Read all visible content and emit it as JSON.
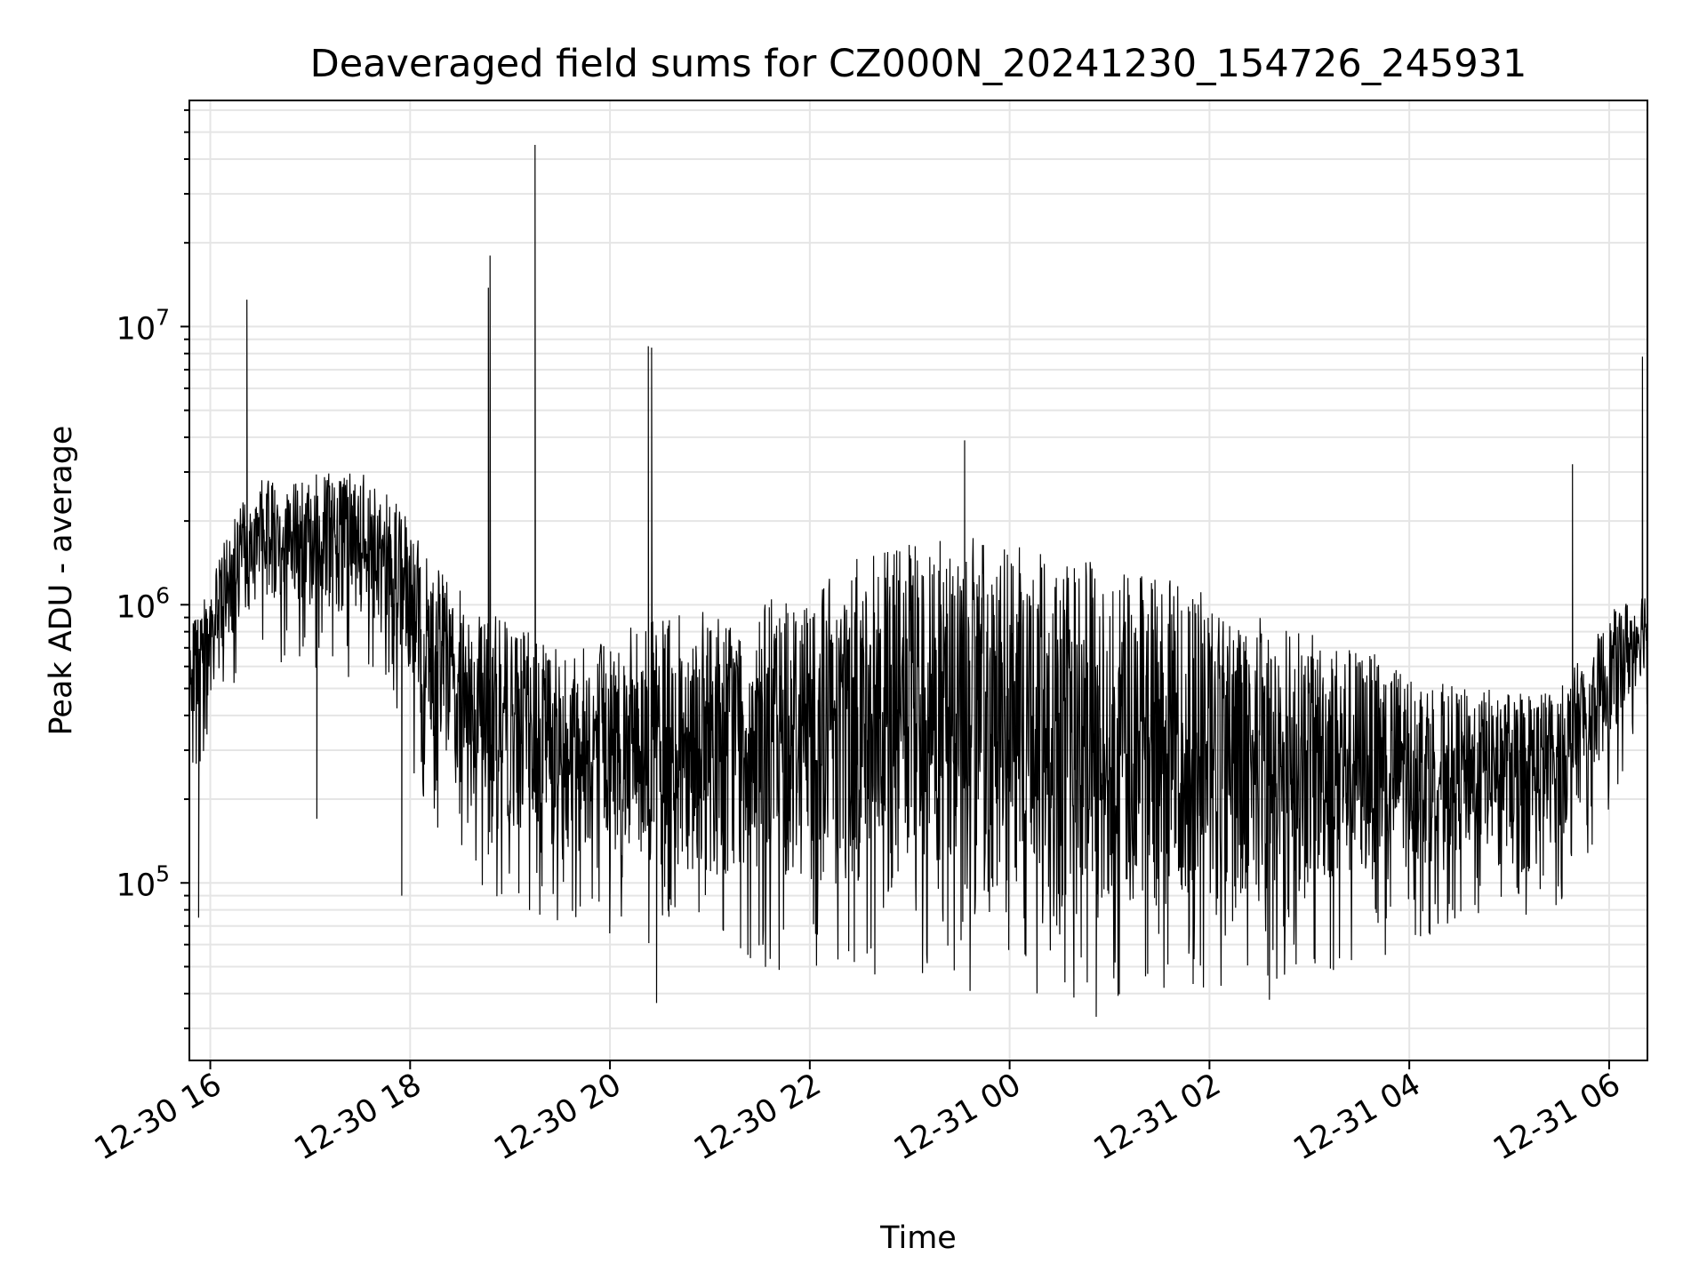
{
  "chart_data": {
    "type": "line",
    "title": "Deaveraged field sums for CZ000N_20241230_154726_245931",
    "xlabel": "Time",
    "ylabel": "Peak ADU - average",
    "yscale": "log",
    "ylim": [
      23000,
      65000000
    ],
    "xlim": [
      "2024-12-30 15:47:26",
      "2024-12-31 06:23:00"
    ],
    "grid": true,
    "line_color": "#000000",
    "grid_color": "#e5e5e5",
    "x_ticks": [
      {
        "t": "2024-12-30 16:00",
        "label": "12-30 16"
      },
      {
        "t": "2024-12-30 18:00",
        "label": "12-30 18"
      },
      {
        "t": "2024-12-30 20:00",
        "label": "12-30 20"
      },
      {
        "t": "2024-12-30 22:00",
        "label": "12-30 22"
      },
      {
        "t": "2024-12-31 00:00",
        "label": "12-31 00"
      },
      {
        "t": "2024-12-31 02:00",
        "label": "12-31 02"
      },
      {
        "t": "2024-12-31 04:00",
        "label": "12-31 04"
      },
      {
        "t": "2024-12-31 06:00",
        "label": "12-31 06"
      }
    ],
    "y_ticks": [
      {
        "value": 100000,
        "base": "10",
        "exp": "5"
      },
      {
        "value": 1000000,
        "base": "10",
        "exp": "6"
      },
      {
        "value": 10000000,
        "base": "10",
        "exp": "7"
      }
    ],
    "envelope": [
      {
        "t": "2024-12-30 15:47:26",
        "low": 350000,
        "high": 800000
      },
      {
        "t": "2024-12-30 16:00",
        "low": 400000,
        "high": 1200000
      },
      {
        "t": "2024-12-30 16:15",
        "low": 700000,
        "high": 2200000
      },
      {
        "t": "2024-12-30 16:30",
        "low": 900000,
        "high": 2800000
      },
      {
        "t": "2024-12-30 17:00",
        "low": 800000,
        "high": 3000000
      },
      {
        "t": "2024-12-30 17:30",
        "low": 700000,
        "high": 3000000
      },
      {
        "t": "2024-12-30 17:50",
        "low": 600000,
        "high": 2500000
      },
      {
        "t": "2024-12-30 18:10",
        "low": 250000,
        "high": 1500000
      },
      {
        "t": "2024-12-30 18:40",
        "low": 130000,
        "high": 1000000
      },
      {
        "t": "2024-12-30 19:30",
        "low": 100000,
        "high": 700000
      },
      {
        "t": "2024-12-30 20:30",
        "low": 80000,
        "high": 900000
      },
      {
        "t": "2024-12-30 21:30",
        "low": 70000,
        "high": 1000000
      },
      {
        "t": "2024-12-30 22:30",
        "low": 60000,
        "high": 1500000
      },
      {
        "t": "2024-12-30 23:30",
        "low": 55000,
        "high": 1800000
      },
      {
        "t": "2024-12-31 00:30",
        "low": 50000,
        "high": 1500000
      },
      {
        "t": "2024-12-31 01:30",
        "low": 55000,
        "high": 1300000
      },
      {
        "t": "2024-12-31 02:30",
        "low": 60000,
        "high": 900000
      },
      {
        "t": "2024-12-31 03:30",
        "low": 70000,
        "high": 700000
      },
      {
        "t": "2024-12-31 04:30",
        "low": 100000,
        "high": 500000
      },
      {
        "t": "2024-12-31 05:30",
        "low": 110000,
        "high": 500000
      },
      {
        "t": "2024-12-31 06:05",
        "low": 300000,
        "high": 1000000
      },
      {
        "t": "2024-12-31 06:23",
        "low": 550000,
        "high": 1200000
      }
    ],
    "peaks": [
      {
        "t": "2024-12-30 16:22",
        "value": 12500000
      },
      {
        "t": "2024-12-30 18:47",
        "value": 13800000
      },
      {
        "t": "2024-12-30 18:48",
        "value": 18000000
      },
      {
        "t": "2024-12-30 19:15",
        "value": 45000000
      },
      {
        "t": "2024-12-30 20:23",
        "value": 8500000
      },
      {
        "t": "2024-12-30 20:25",
        "value": 8400000
      },
      {
        "t": "2024-12-30 23:33",
        "value": 3900000
      },
      {
        "t": "2024-12-31 05:38",
        "value": 3200000
      },
      {
        "t": "2024-12-31 06:20",
        "value": 7800000
      }
    ],
    "dips": [
      {
        "t": "2024-12-30 15:53",
        "value": 75000
      },
      {
        "t": "2024-12-30 17:04",
        "value": 170000
      },
      {
        "t": "2024-12-30 17:55",
        "value": 90000
      },
      {
        "t": "2024-12-30 20:28",
        "value": 37000
      },
      {
        "t": "2024-12-31 00:52",
        "value": 33000
      },
      {
        "t": "2024-12-31 02:36",
        "value": 38000
      }
    ]
  }
}
